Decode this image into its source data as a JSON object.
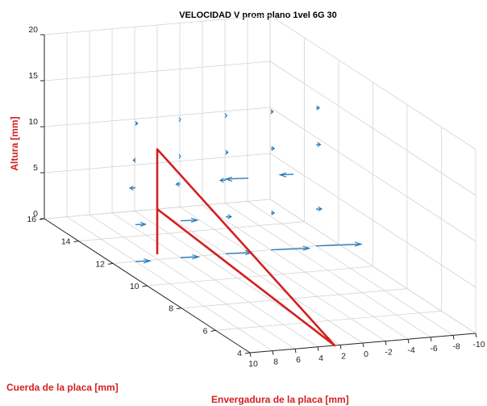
{
  "chart_data": {
    "type": "quiver3d",
    "title": "VELOCIDAD V prom plano 1vel 6G 30",
    "xlabel": "Envergadura de la placa [mm]",
    "ylabel": "Cuerda de la placa [mm]",
    "zlabel": "Altura [mm]",
    "xlim": [
      10,
      -10
    ],
    "ylim": [
      4,
      16
    ],
    "zlim": [
      0,
      20
    ],
    "x_ticks": [
      "10",
      "8",
      "6",
      "4",
      "2",
      "0",
      "-2",
      "-4",
      "-6",
      "-8",
      "-10"
    ],
    "y_ticks": [
      "4",
      "6",
      "8",
      "10",
      "12",
      "14",
      "16"
    ],
    "z_ticks": [
      "0",
      "5",
      "10",
      "15",
      "20"
    ],
    "grid": true,
    "colors": {
      "vectors": "#2b7bba",
      "plate": "#d42020",
      "labels": "#d42020"
    },
    "rows": [
      {
        "z": 15,
        "vectors": [
          [
            "x",
            8,
            "u",
            -0.2
          ],
          [
            "x",
            4,
            "u",
            0.0
          ],
          [
            "x",
            0,
            "u",
            -0.1
          ],
          [
            "x",
            -4,
            "u",
            -0.2
          ],
          [
            "x",
            -8,
            "u",
            -0.3
          ]
        ]
      },
      {
        "z": 11,
        "vectors": [
          [
            "x",
            8,
            "u",
            0.2
          ],
          [
            "x",
            4,
            "u",
            0.0
          ],
          [
            "x",
            0,
            "u",
            -0.2
          ],
          [
            "x",
            -4,
            "u",
            -0.3
          ],
          [
            "x",
            -8,
            "u",
            -0.4
          ]
        ]
      },
      {
        "z": 8,
        "vectors": [
          [
            "x",
            8,
            "u",
            0.5
          ],
          [
            "x",
            4,
            "u",
            0.4
          ],
          [
            "x",
            0,
            "u",
            0.5
          ],
          [
            "x",
            -2,
            "u",
            2.0
          ],
          [
            "x",
            -6,
            "u",
            1.2
          ]
        ]
      },
      {
        "z": 4,
        "vectors": [
          [
            "x",
            8,
            "u",
            -0.9
          ],
          [
            "x",
            4,
            "u",
            -1.5
          ],
          [
            "x",
            0,
            "u",
            -0.5
          ],
          [
            "x",
            -4,
            "u",
            -0.3
          ],
          [
            "x",
            -8,
            "u",
            -0.5
          ]
        ]
      },
      {
        "z": 0,
        "vectors": [
          [
            "x",
            8,
            "u",
            -1.3
          ],
          [
            "x",
            4,
            "u",
            -1.6
          ],
          [
            "x",
            0,
            "u",
            -2.3
          ],
          [
            "x",
            -4,
            "u",
            -3.4
          ],
          [
            "x",
            -8,
            "u",
            -4.0
          ]
        ]
      }
    ]
  }
}
